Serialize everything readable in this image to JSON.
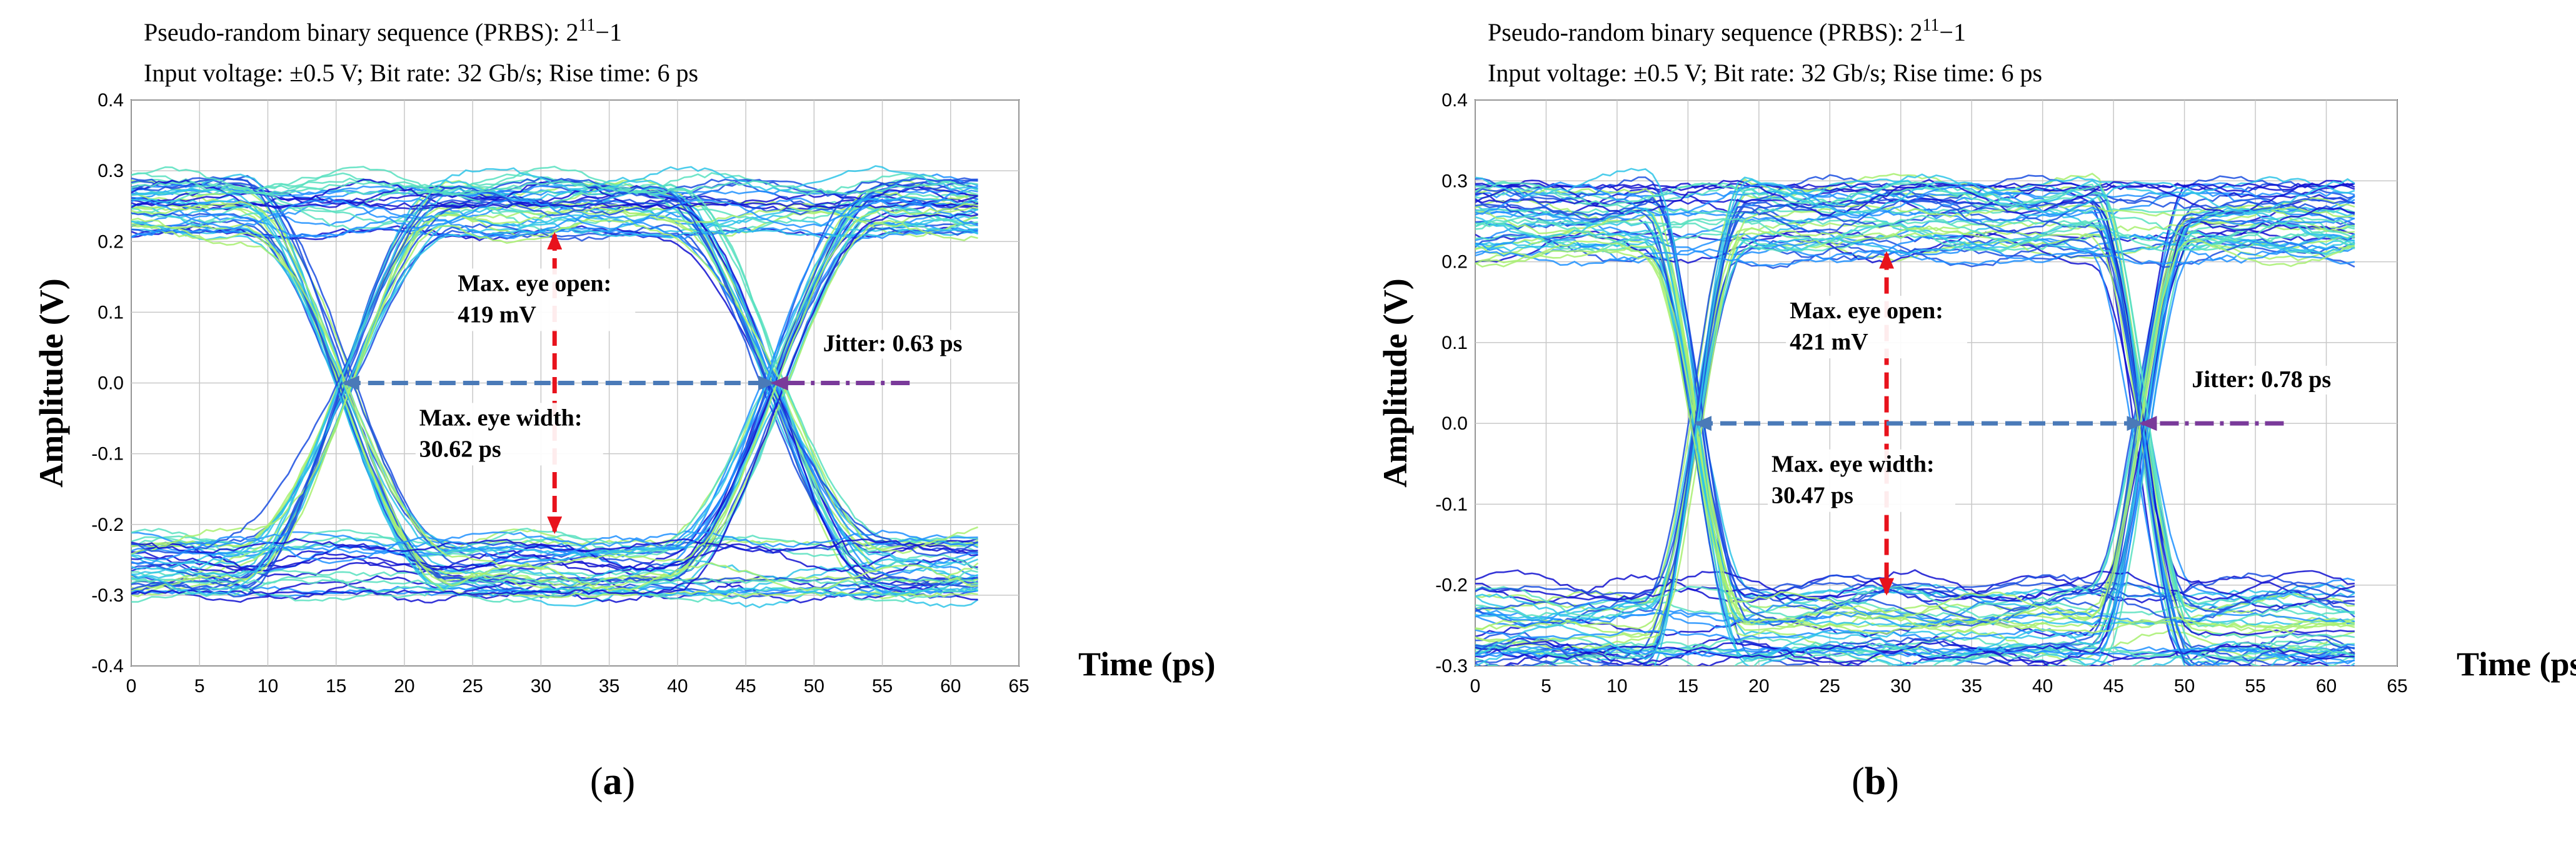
{
  "chart_data": [
    {
      "type": "eye-diagram",
      "panel": "a",
      "caption": "a",
      "header_line1_prefix": "Pseudo-random binary sequence (PRBS): 2",
      "header_exponent": "11",
      "header_line1_suffix": "−1",
      "header_line2": "Input voltage: ±0.5 V; Bit rate: 32 Gb/s; Rise time: 6 ps",
      "xlabel": "Time (ps)",
      "ylabel": "Amplitude  (V)",
      "xlim": [
        0,
        65
      ],
      "ylim": [
        -0.4,
        0.4
      ],
      "xticks": [
        "0",
        "5",
        "10",
        "15",
        "20",
        "25",
        "30",
        "35",
        "40",
        "45",
        "50",
        "55",
        "60",
        "65"
      ],
      "yticks": [
        "0.4",
        "0.3",
        "0.2",
        "0.1",
        "0.0",
        "-0.1",
        "-0.2",
        "-0.3",
        "-0.4"
      ],
      "high_level": 0.25,
      "low_level": -0.26,
      "level_spread": 0.04,
      "crossings": [
        15.6,
        47
      ],
      "transition_time": 16,
      "data_end": 62,
      "eye_open_label_1": "Max. eye open:",
      "eye_open_label_2": "419 mV",
      "eye_width_label_1": "Max. eye width:",
      "eye_width_label_2": "30.62 ps",
      "jitter_label": "Jitter: 0.63 ps",
      "eye_open_x": 31,
      "eye_open_range": [
        -0.21,
        0.21
      ],
      "eye_width_range": [
        15.6,
        47
      ],
      "jitter_arrow_range": [
        47,
        57
      ],
      "trace_colors": [
        "#1010d0",
        "#1a4de0",
        "#1e90ff",
        "#2ec4e8",
        "#58e0c0",
        "#a8f070"
      ]
    },
    {
      "type": "eye-diagram",
      "panel": "b",
      "caption": "b",
      "header_line1_prefix": "Pseudo-random binary sequence (PRBS): 2",
      "header_exponent": "11",
      "header_line1_suffix": "−1",
      "header_line2": "Input voltage: ±0.5 V; Bit rate: 32 Gb/s; Rise time: 6 ps",
      "xlabel": "Time (ps)",
      "ylabel": "Amplitude  (V)",
      "xlim": [
        0,
        65
      ],
      "ylim": [
        -0.3,
        0.4
      ],
      "xticks": [
        "0",
        "5",
        "10",
        "15",
        "20",
        "25",
        "30",
        "35",
        "40",
        "45",
        "50",
        "55",
        "60",
        "65"
      ],
      "yticks": [
        "0.4",
        "0.3",
        "0.2",
        "0.1",
        "0.0",
        "-0.1",
        "-0.2",
        "-0.3"
      ],
      "high_level": 0.25,
      "low_level": -0.25,
      "level_spread": 0.05,
      "crossings": [
        15.6,
        47
      ],
      "transition_time": 7,
      "data_end": 62,
      "eye_open_label_1": "Max. eye open:",
      "eye_open_label_2": "421 mV",
      "eye_width_label_1": "Max. eye width:",
      "eye_width_label_2": "30.47 ps",
      "jitter_label": "Jitter: 0.78 ps",
      "eye_open_x": 29,
      "eye_open_range": [
        -0.21,
        0.21
      ],
      "eye_width_range": [
        15.6,
        47
      ],
      "jitter_arrow_range": [
        47,
        57
      ],
      "trace_colors": [
        "#1010d0",
        "#1a4de0",
        "#1e90ff",
        "#2ec4e8",
        "#58e0c0",
        "#a8f070"
      ]
    }
  ],
  "annotation_colors": {
    "eye_open_arrow": "#e8121c",
    "eye_width_arrow": "#4a7ab8",
    "jitter_arrow": "#7a3a9a"
  }
}
